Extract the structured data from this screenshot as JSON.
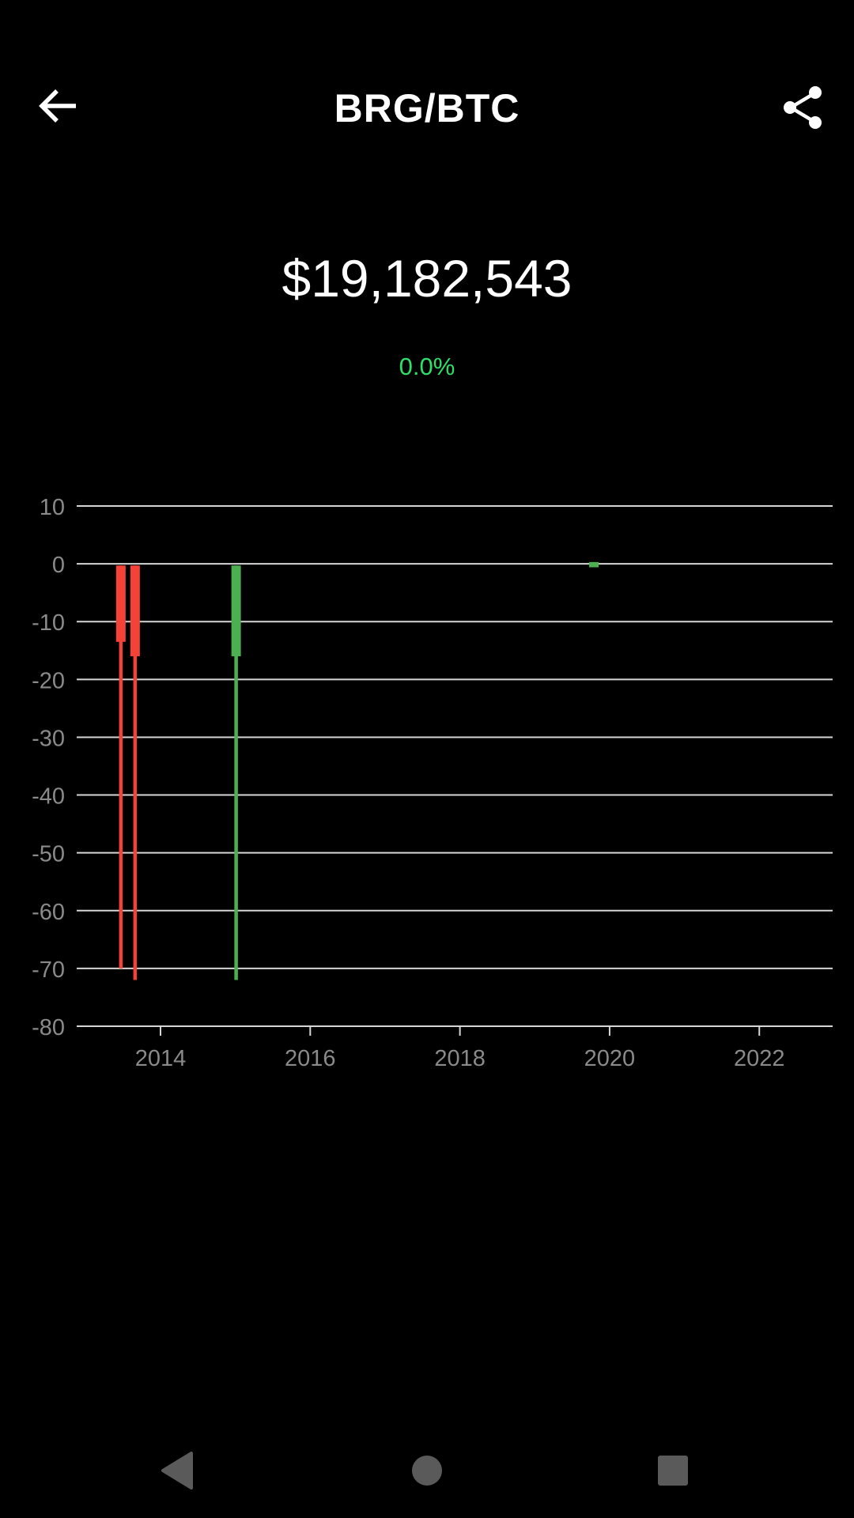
{
  "header": {
    "title": "BRG/BTC",
    "back_icon": "arrow-left-icon",
    "share_icon": "share-icon"
  },
  "summary": {
    "price": "$19,182,543",
    "change": "0.0%"
  },
  "colors": {
    "background": "#000000",
    "text": "#ffffff",
    "axis_label": "#8a8a8a",
    "grid": "#d6d6d6",
    "positive": "#4caf50",
    "negative": "#f44336",
    "change_text": "#2ee06a",
    "nav_icon": "#5a5a5a"
  },
  "chart_data": {
    "type": "candlestick",
    "x_type": "year",
    "xlim": [
      2012.88,
      2022.98
    ],
    "ylim": [
      -80,
      10
    ],
    "yticks": [
      10,
      0,
      -10,
      -20,
      -30,
      -40,
      -50,
      -60,
      -70,
      -80
    ],
    "xticks": [
      2014,
      2016,
      2018,
      2020,
      2022
    ],
    "grid": true,
    "candles": [
      {
        "x": 2013.47,
        "open": -0.3,
        "close": -13.5,
        "high": -0.3,
        "low": -70
      },
      {
        "x": 2013.66,
        "open": -0.3,
        "close": -16,
        "high": -0.3,
        "low": -72
      },
      {
        "x": 2015.01,
        "open": -16,
        "close": -0.3,
        "high": -0.3,
        "low": -72
      },
      {
        "x": 2019.79,
        "open": -0.6,
        "close": 0.3,
        "high": 0.3,
        "low": -0.6
      }
    ]
  },
  "nav": {
    "back_icon": "triangle-back-icon",
    "home_icon": "circle-home-icon",
    "recents_icon": "square-recents-icon"
  }
}
